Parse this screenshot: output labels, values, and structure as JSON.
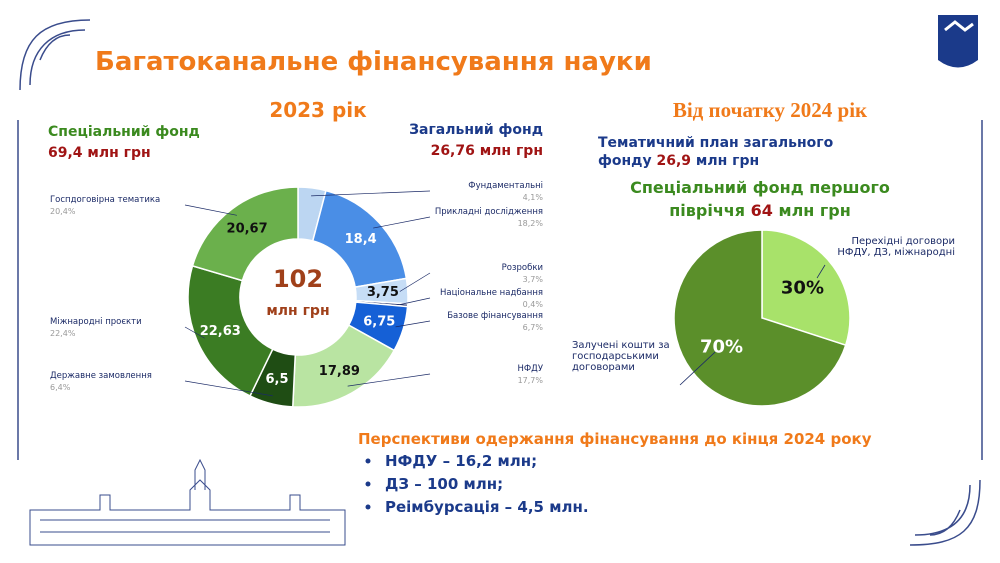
{
  "slide": {
    "title": "Багатоканальне фінансування науки",
    "left_heading": "2023 рік",
    "special_fund": {
      "label": "Спеціальний фонд",
      "amount": "69,4 млн грн"
    },
    "general_fund": {
      "label": "Загальний фонд",
      "amount": "26,76 млн грн"
    },
    "right_heading": "Від початку 2024 рік",
    "thematic_plan": {
      "line1": "Тематичний план загального",
      "prefix": "фонду",
      "amount": "26,9",
      "unit": "млн грн"
    },
    "special_2024": {
      "line1": "Спеціальний фонд першого",
      "prefix": "півріччя",
      "amount": "64",
      "unit": "млн грн"
    },
    "prospects": {
      "heading": "Перспективи одержання фінансування до кінця 2024 року",
      "items": [
        "НФДУ – 16,2 млн;",
        "ДЗ – 100 млн;",
        "Реімбурсація – 4,5 млн."
      ]
    }
  },
  "chart_data": [
    {
      "type": "donut",
      "center_text": [
        "102",
        "млн грн"
      ],
      "categories": [
        "Фундаментальні",
        "Прикладні дослідження",
        "Розробки",
        "Національне надбання",
        "Базове фінансування",
        "НФДУ",
        "Державне замовлення",
        "Міжнародні проєкти",
        "Госпдоговірна тематика"
      ],
      "values": [
        4.14,
        18.4,
        3.75,
        0.4,
        6.75,
        17.89,
        6.5,
        22.63,
        20.67
      ],
      "value_labels": [
        null,
        "18,4",
        "3,75",
        null,
        "6,75",
        "17,89",
        "6,5",
        "22,63",
        "20,67"
      ],
      "share_labels": [
        "4,1%",
        "18,2%",
        "3,7%",
        "0,4%",
        "6,7%",
        "17,7%",
        "6,4%",
        "22,4%",
        "20,4%"
      ],
      "colors": [
        "#bcd6f2",
        "#4a8ee6",
        "#c6ddf6",
        "#1b2a66",
        "#1560d6",
        "#b9e4a2",
        "#1f4d14",
        "#3b7c23",
        "#6bb04c"
      ]
    },
    {
      "type": "pie",
      "categories": [
        "Перехідні договори НФДУ, ДЗ, міжнародні",
        "Залучені кошти за господарськими договорами"
      ],
      "values": [
        30,
        70
      ],
      "value_labels": [
        "30%",
        "70%"
      ],
      "colors": [
        "#a8e26a",
        "#5b8f2a"
      ]
    }
  ]
}
